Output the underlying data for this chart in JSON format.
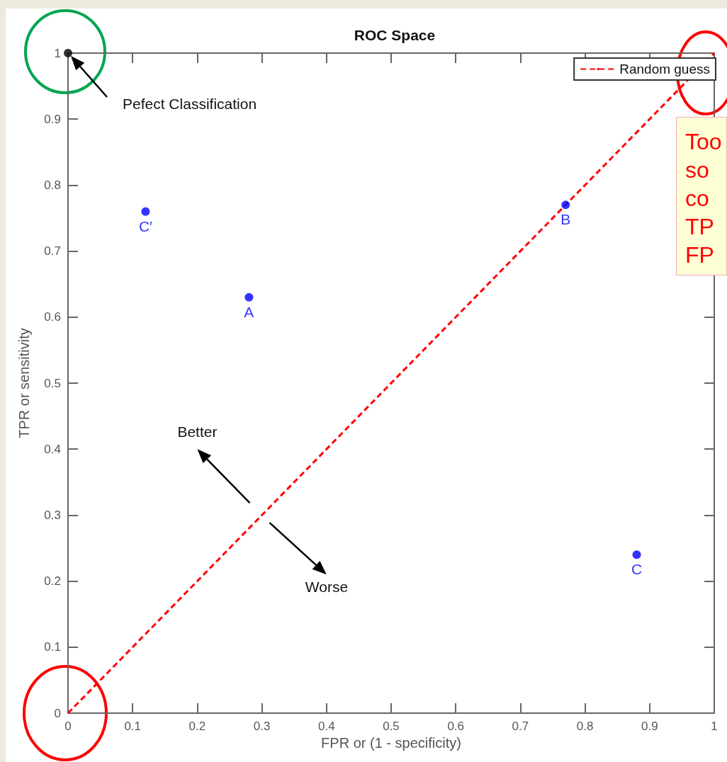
{
  "chart_data": {
    "type": "scatter",
    "title": "ROC Space",
    "xlabel": "FPR or (1 - specificity)",
    "ylabel": "TPR or sensitivity",
    "xlim": [
      0,
      1
    ],
    "ylim": [
      0,
      1
    ],
    "xticks": [
      0,
      0.1,
      0.2,
      0.3,
      0.4,
      0.5,
      0.6,
      0.7,
      0.8,
      0.9,
      1
    ],
    "yticks": [
      0,
      0.1,
      0.2,
      0.3,
      0.4,
      0.5,
      0.6,
      0.7,
      0.8,
      0.9,
      1
    ],
    "grid": false,
    "legend": "top right",
    "marker": "circle",
    "series": [
      {
        "color": "#0000ff",
        "x": [
          0.12,
          0.28,
          0.77,
          0.88
        ],
        "values": [
          0.76,
          0.63,
          0.77,
          0.24
        ],
        "value_labels": [
          "C′",
          "A",
          "B",
          "C"
        ]
      },
      {
        "color": "#000000",
        "x": [
          0
        ],
        "values": [
          1
        ]
      },
      {
        "type": "line",
        "name": "Random guess",
        "color": "#ff0000",
        "x": [
          0,
          1
        ],
        "values": [
          0,
          1
        ],
        "line_style": "dashed",
        "marker": "none"
      }
    ],
    "annotations": [
      "Pefect Classification",
      "Better",
      "Worse",
      "Too\nso\nco\nTP\nFP"
    ]
  }
}
